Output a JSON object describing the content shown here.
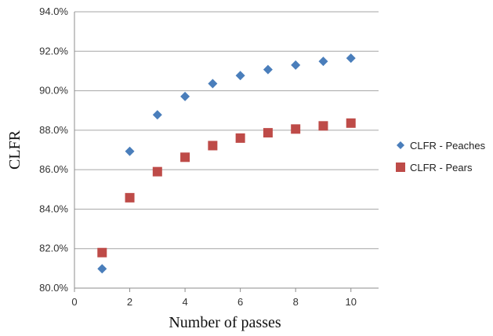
{
  "chart_data": {
    "type": "scatter",
    "xlabel": "Number of passes",
    "ylabel": "CLFR",
    "xlim": [
      0,
      11
    ],
    "ylim": [
      0.8,
      0.94
    ],
    "x_ticks": [
      0,
      2,
      4,
      6,
      8,
      10
    ],
    "x_tick_labels": [
      "0",
      "2",
      "4",
      "6",
      "8",
      "10"
    ],
    "y_ticks": [
      0.8,
      0.82,
      0.84,
      0.86,
      0.88,
      0.9,
      0.92,
      0.94
    ],
    "y_tick_labels": [
      "80.0%",
      "82.0%",
      "84.0%",
      "86.0%",
      "88.0%",
      "90.0%",
      "92.0%",
      "94.0%"
    ],
    "grid": "horizontal",
    "legend_position": "right",
    "series": [
      {
        "name": "CLFR - Peaches",
        "marker": "diamond",
        "color": "#4a7ebb",
        "x": [
          1,
          2,
          3,
          4,
          5,
          6,
          7,
          8,
          9,
          10
        ],
        "y": [
          0.8098,
          0.8693,
          0.8878,
          0.8971,
          0.9036,
          0.9077,
          0.9107,
          0.913,
          0.9149,
          0.9165
        ]
      },
      {
        "name": "CLFR - Pears",
        "marker": "square",
        "color": "#be4b48",
        "x": [
          1,
          2,
          3,
          4,
          5,
          6,
          7,
          8,
          9,
          10
        ],
        "y": [
          0.818,
          0.8458,
          0.859,
          0.8663,
          0.8722,
          0.876,
          0.8787,
          0.8806,
          0.8822,
          0.8836
        ]
      }
    ]
  }
}
